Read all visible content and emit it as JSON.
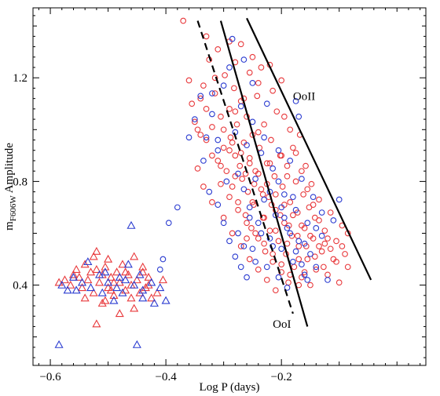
{
  "chart_data": {
    "type": "scatter",
    "xlabel": "Log P (days)",
    "ylabel_main": "m",
    "ylabel_sub": "F606W",
    "ylabel_rest": " Amplitude",
    "xlim": [
      -0.63,
      0.05
    ],
    "ylim": [
      0.09,
      1.47
    ],
    "x_ticks": [
      -0.6,
      -0.4,
      -0.2
    ],
    "x_tick_labels": [
      "−0.6",
      "−0.4",
      "−0.2"
    ],
    "y_ticks": [
      0.4,
      0.8,
      1.2
    ],
    "y_tick_labels": [
      "0.4",
      "0.8",
      "1.2"
    ],
    "colors": {
      "red": "#e8383b",
      "blue": "#2a3bd0"
    },
    "annotations": [
      {
        "text": "OoII",
        "x": -0.18,
        "y": 1.13
      },
      {
        "text": "OoI",
        "x": -0.215,
        "y": 0.25
      }
    ],
    "lines": [
      {
        "name": "OoI",
        "style": "solid",
        "points": [
          [
            -0.305,
            1.42
          ],
          [
            -0.155,
            0.24
          ]
        ]
      },
      {
        "name": "OoI-dashed",
        "style": "dashed",
        "points": [
          [
            -0.345,
            1.42
          ],
          [
            -0.18,
            0.29
          ]
        ]
      },
      {
        "name": "OoII",
        "style": "solid",
        "points": [
          [
            -0.26,
            1.43
          ],
          [
            -0.045,
            0.42
          ]
        ]
      }
    ],
    "rrc_triangles_red": [
      [
        -0.585,
        0.41
      ],
      [
        -0.575,
        0.42
      ],
      [
        -0.565,
        0.4
      ],
      [
        -0.555,
        0.46
      ],
      [
        -0.55,
        0.43
      ],
      [
        -0.545,
        0.39
      ],
      [
        -0.54,
        0.48
      ],
      [
        -0.535,
        0.42
      ],
      [
        -0.53,
        0.45
      ],
      [
        -0.525,
        0.37
      ],
      [
        -0.52,
        0.53
      ],
      [
        -0.515,
        0.41
      ],
      [
        -0.51,
        0.44
      ],
      [
        -0.505,
        0.47
      ],
      [
        -0.5,
        0.39
      ],
      [
        -0.495,
        0.43
      ],
      [
        -0.49,
        0.36
      ],
      [
        -0.485,
        0.45
      ],
      [
        -0.48,
        0.41
      ],
      [
        -0.475,
        0.48
      ],
      [
        -0.47,
        0.38
      ],
      [
        -0.465,
        0.44
      ],
      [
        -0.46,
        0.4
      ],
      [
        -0.455,
        0.51
      ],
      [
        -0.45,
        0.42
      ],
      [
        -0.445,
        0.37
      ],
      [
        -0.44,
        0.45
      ],
      [
        -0.435,
        0.39
      ],
      [
        -0.43,
        0.43
      ],
      [
        -0.425,
        0.35
      ],
      [
        -0.52,
        0.25
      ],
      [
        -0.51,
        0.33
      ],
      [
        -0.48,
        0.29
      ],
      [
        -0.455,
        0.31
      ],
      [
        -0.5,
        0.5
      ],
      [
        -0.44,
        0.47
      ],
      [
        -0.415,
        0.37
      ],
      [
        -0.405,
        0.42
      ],
      [
        -0.56,
        0.44
      ],
      [
        -0.54,
        0.35
      ],
      [
        -0.525,
        0.51
      ],
      [
        -0.495,
        0.38
      ],
      [
        -0.47,
        0.45
      ],
      [
        -0.46,
        0.35
      ],
      [
        -0.43,
        0.4
      ],
      [
        -0.52,
        0.46
      ],
      [
        -0.49,
        0.41
      ],
      [
        -0.505,
        0.34
      ]
    ],
    "rrc_triangles_blue": [
      [
        -0.585,
        0.17
      ],
      [
        -0.45,
        0.17
      ],
      [
        -0.46,
        0.63
      ],
      [
        -0.58,
        0.4
      ],
      [
        -0.57,
        0.38
      ],
      [
        -0.56,
        0.43
      ],
      [
        -0.545,
        0.41
      ],
      [
        -0.53,
        0.39
      ],
      [
        -0.515,
        0.44
      ],
      [
        -0.5,
        0.41
      ],
      [
        -0.485,
        0.39
      ],
      [
        -0.47,
        0.42
      ],
      [
        -0.455,
        0.4
      ],
      [
        -0.44,
        0.38
      ],
      [
        -0.425,
        0.41
      ],
      [
        -0.41,
        0.39
      ],
      [
        -0.4,
        0.34
      ],
      [
        -0.42,
        0.33
      ],
      [
        -0.475,
        0.37
      ],
      [
        -0.535,
        0.49
      ],
      [
        -0.505,
        0.45
      ],
      [
        -0.465,
        0.48
      ],
      [
        -0.445,
        0.44
      ],
      [
        -0.49,
        0.34
      ],
      [
        -0.555,
        0.38
      ],
      [
        -0.51,
        0.37
      ],
      [
        -0.48,
        0.43
      ],
      [
        -0.44,
        0.35
      ]
    ],
    "rrab_circles_red": [
      [
        -0.37,
        1.42
      ],
      [
        -0.35,
        1.03
      ],
      [
        -0.36,
        1.19
      ],
      [
        -0.34,
        1.12
      ],
      [
        -0.33,
        0.96
      ],
      [
        -0.325,
        1.27
      ],
      [
        -0.32,
        1.01
      ],
      [
        -0.315,
        1.14
      ],
      [
        -0.31,
        0.88
      ],
      [
        -0.305,
        1.05
      ],
      [
        -0.3,
        0.93
      ],
      [
        -0.298,
        1.21
      ],
      [
        -0.295,
        0.84
      ],
      [
        -0.29,
        1.08
      ],
      [
        -0.288,
        0.97
      ],
      [
        -0.285,
        0.78
      ],
      [
        -0.282,
        1.16
      ],
      [
        -0.28,
        0.9
      ],
      [
        -0.277,
        1.02
      ],
      [
        -0.275,
        0.72
      ],
      [
        -0.272,
        0.86
      ],
      [
        -0.27,
        1.11
      ],
      [
        -0.268,
        0.81
      ],
      [
        -0.265,
        0.95
      ],
      [
        -0.262,
        0.67
      ],
      [
        -0.26,
        1.05
      ],
      [
        -0.258,
        0.76
      ],
      [
        -0.255,
        0.89
      ],
      [
        -0.252,
        0.62
      ],
      [
        -0.25,
        0.98
      ],
      [
        -0.248,
        0.71
      ],
      [
        -0.245,
        0.84
      ],
      [
        -0.242,
        1.13
      ],
      [
        -0.24,
        0.58
      ],
      [
        -0.238,
        0.93
      ],
      [
        -0.235,
        0.77
      ],
      [
        -0.232,
        0.66
      ],
      [
        -0.23,
        1.02
      ],
      [
        -0.228,
        0.53
      ],
      [
        -0.225,
        0.87
      ],
      [
        -0.222,
        0.74
      ],
      [
        -0.22,
        0.61
      ],
      [
        -0.218,
        0.96
      ],
      [
        -0.215,
        0.49
      ],
      [
        -0.212,
        0.82
      ],
      [
        -0.21,
        0.69
      ],
      [
        -0.208,
        1.07
      ],
      [
        -0.205,
        0.57
      ],
      [
        -0.202,
        0.9
      ],
      [
        -0.2,
        0.45
      ],
      [
        -0.198,
        0.78
      ],
      [
        -0.195,
        0.64
      ],
      [
        -0.192,
        0.52
      ],
      [
        -0.19,
        0.86
      ],
      [
        -0.188,
        0.41
      ],
      [
        -0.185,
        0.72
      ],
      [
        -0.182,
        0.59
      ],
      [
        -0.18,
        0.93
      ],
      [
        -0.178,
        0.47
      ],
      [
        -0.175,
        0.8
      ],
      [
        -0.172,
        0.68
      ],
      [
        -0.17,
        0.55
      ],
      [
        -0.168,
        0.98
      ],
      [
        -0.165,
        0.43
      ],
      [
        -0.162,
        0.75
      ],
      [
        -0.16,
        0.62
      ],
      [
        -0.158,
        0.86
      ],
      [
        -0.155,
        0.5
      ],
      [
        -0.152,
        0.7
      ],
      [
        -0.15,
        0.4
      ],
      [
        -0.148,
        0.79
      ],
      [
        -0.145,
        0.58
      ],
      [
        -0.142,
        0.66
      ],
      [
        -0.14,
        0.46
      ],
      [
        -0.135,
        0.73
      ],
      [
        -0.13,
        0.53
      ],
      [
        -0.125,
        0.61
      ],
      [
        -0.12,
        0.44
      ],
      [
        -0.115,
        0.68
      ],
      [
        -0.11,
        0.5
      ],
      [
        -0.105,
        0.57
      ],
      [
        -0.1,
        0.41
      ],
      [
        -0.095,
        0.63
      ],
      [
        -0.09,
        0.52
      ],
      [
        -0.085,
        0.47
      ],
      [
        -0.31,
        1.31
      ],
      [
        -0.28,
        1.26
      ],
      [
        -0.255,
        1.22
      ],
      [
        -0.24,
        1.18
      ],
      [
        -0.22,
        1.25
      ],
      [
        -0.2,
        1.19
      ],
      [
        -0.345,
        0.85
      ],
      [
        -0.335,
        0.78
      ],
      [
        -0.32,
        0.72
      ],
      [
        -0.3,
        0.66
      ],
      [
        -0.285,
        0.6
      ],
      [
        -0.27,
        0.55
      ],
      [
        -0.255,
        0.5
      ],
      [
        -0.24,
        0.46
      ],
      [
        -0.225,
        0.42
      ],
      [
        -0.21,
        0.38
      ],
      [
        -0.33,
        1.36
      ],
      [
        -0.29,
        1.34
      ],
      [
        -0.27,
        1.33
      ],
      [
        -0.25,
        1.28
      ],
      [
        -0.235,
        1.24
      ],
      [
        -0.215,
        1.15
      ],
      [
        -0.195,
        1.05
      ],
      [
        -0.185,
        1.0
      ],
      [
        -0.175,
        0.91
      ],
      [
        -0.165,
        0.84
      ],
      [
        -0.155,
        0.77
      ],
      [
        -0.145,
        0.71
      ],
      [
        -0.135,
        0.65
      ],
      [
        -0.125,
        0.56
      ],
      [
        -0.115,
        0.54
      ],
      [
        -0.105,
        0.49
      ],
      [
        -0.305,
        0.79
      ],
      [
        -0.29,
        0.74
      ],
      [
        -0.275,
        0.69
      ],
      [
        -0.26,
        0.64
      ],
      [
        -0.245,
        0.6
      ],
      [
        -0.23,
        0.56
      ],
      [
        -0.215,
        0.52
      ],
      [
        -0.2,
        0.48
      ],
      [
        -0.185,
        0.44
      ],
      [
        -0.17,
        0.4
      ],
      [
        -0.262,
        0.83
      ],
      [
        -0.247,
        0.79
      ],
      [
        -0.232,
        0.75
      ],
      [
        -0.217,
        0.71
      ],
      [
        -0.202,
        0.67
      ],
      [
        -0.187,
        0.63
      ],
      [
        -0.172,
        0.59
      ],
      [
        -0.157,
        0.55
      ],
      [
        -0.142,
        0.51
      ],
      [
        -0.127,
        0.47
      ],
      [
        -0.3,
        1.0
      ],
      [
        -0.285,
        0.95
      ],
      [
        -0.27,
        0.91
      ],
      [
        -0.255,
        0.87
      ],
      [
        -0.24,
        0.83
      ],
      [
        -0.225,
        0.79
      ],
      [
        -0.21,
        0.75
      ],
      [
        -0.195,
        0.71
      ],
      [
        -0.18,
        0.67
      ],
      [
        -0.165,
        0.63
      ],
      [
        -0.15,
        0.59
      ],
      [
        -0.135,
        0.55
      ],
      [
        -0.34,
        0.98
      ],
      [
        -0.33,
        1.08
      ],
      [
        -0.315,
        1.2
      ],
      [
        -0.23,
        0.66
      ],
      [
        -0.26,
        0.58
      ],
      [
        -0.28,
        0.82
      ],
      [
        -0.25,
        0.72
      ],
      [
        -0.21,
        0.61
      ],
      [
        -0.19,
        0.56
      ],
      [
        -0.17,
        0.5
      ],
      [
        -0.16,
        0.45
      ],
      [
        -0.355,
        1.1
      ],
      [
        -0.345,
        1.0
      ],
      [
        -0.095,
        0.55
      ],
      [
        -0.085,
        0.6
      ],
      [
        -0.12,
        0.58
      ],
      [
        -0.2,
        0.9
      ],
      [
        -0.19,
        0.82
      ],
      [
        -0.22,
        0.87
      ],
      [
        -0.24,
        0.99
      ],
      [
        -0.265,
        1.12
      ],
      [
        -0.28,
        1.07
      ],
      [
        -0.29,
        0.92
      ],
      [
        -0.305,
        0.86
      ],
      [
        -0.32,
        0.9
      ],
      [
        -0.335,
        1.17
      ]
    ],
    "rrab_circles_blue": [
      [
        -0.35,
        1.04
      ],
      [
        -0.34,
        1.13
      ],
      [
        -0.33,
        0.97
      ],
      [
        -0.32,
        1.06
      ],
      [
        -0.31,
        0.92
      ],
      [
        -0.3,
        1.17
      ],
      [
        -0.29,
        1.24
      ],
      [
        -0.285,
        1.35
      ],
      [
        -0.28,
        0.99
      ],
      [
        -0.275,
        0.83
      ],
      [
        -0.27,
        1.09
      ],
      [
        -0.265,
        0.77
      ],
      [
        -0.26,
        0.94
      ],
      [
        -0.255,
        0.7
      ],
      [
        -0.25,
        1.03
      ],
      [
        -0.245,
        0.81
      ],
      [
        -0.24,
        0.64
      ],
      [
        -0.235,
        0.91
      ],
      [
        -0.23,
        0.73
      ],
      [
        -0.225,
        1.1
      ],
      [
        -0.22,
        0.58
      ],
      [
        -0.215,
        0.85
      ],
      [
        -0.21,
        0.67
      ],
      [
        -0.205,
        0.8
      ],
      [
        -0.2,
        0.54
      ],
      [
        -0.195,
        0.75
      ],
      [
        -0.19,
        0.62
      ],
      [
        -0.185,
        0.88
      ],
      [
        -0.18,
        0.49
      ],
      [
        -0.175,
        0.69
      ],
      [
        -0.17,
        0.57
      ],
      [
        -0.165,
        0.81
      ],
      [
        -0.16,
        0.44
      ],
      [
        -0.155,
        0.64
      ],
      [
        -0.15,
        0.52
      ],
      [
        -0.145,
        0.74
      ],
      [
        -0.14,
        0.47
      ],
      [
        -0.13,
        0.59
      ],
      [
        -0.12,
        0.42
      ],
      [
        -0.11,
        0.65
      ],
      [
        -0.1,
        0.73
      ],
      [
        -0.175,
        1.11
      ],
      [
        -0.17,
        1.05
      ],
      [
        -0.31,
        0.71
      ],
      [
        -0.3,
        0.64
      ],
      [
        -0.29,
        0.57
      ],
      [
        -0.28,
        0.51
      ],
      [
        -0.27,
        0.47
      ],
      [
        -0.26,
        0.43
      ],
      [
        -0.25,
        0.54
      ],
      [
        -0.325,
        0.76
      ],
      [
        -0.335,
        0.88
      ],
      [
        -0.395,
        0.64
      ],
      [
        -0.405,
        0.5
      ],
      [
        -0.41,
        0.46
      ],
      [
        -0.38,
        0.7
      ],
      [
        -0.36,
        0.97
      ],
      [
        -0.23,
        0.97
      ],
      [
        -0.205,
        0.92
      ],
      [
        -0.195,
        0.66
      ],
      [
        -0.185,
        0.6
      ],
      [
        -0.175,
        0.53
      ],
      [
        -0.165,
        0.48
      ],
      [
        -0.155,
        0.42
      ],
      [
        -0.14,
        0.62
      ],
      [
        -0.13,
        0.68
      ],
      [
        -0.245,
        0.49
      ],
      [
        -0.225,
        0.47
      ],
      [
        -0.205,
        0.43
      ],
      [
        -0.19,
        0.39
      ],
      [
        -0.215,
        0.55
      ],
      [
        -0.235,
        0.6
      ],
      [
        -0.255,
        0.66
      ],
      [
        -0.265,
        0.55
      ],
      [
        -0.275,
        0.6
      ],
      [
        -0.295,
        0.8
      ],
      [
        -0.31,
        0.96
      ],
      [
        -0.32,
        1.14
      ],
      [
        -0.265,
        1.27
      ],
      [
        -0.25,
        1.18
      ],
      [
        -0.22,
        0.76
      ],
      [
        -0.2,
        0.7
      ],
      [
        -0.18,
        0.74
      ],
      [
        -0.16,
        0.56
      ]
    ]
  }
}
